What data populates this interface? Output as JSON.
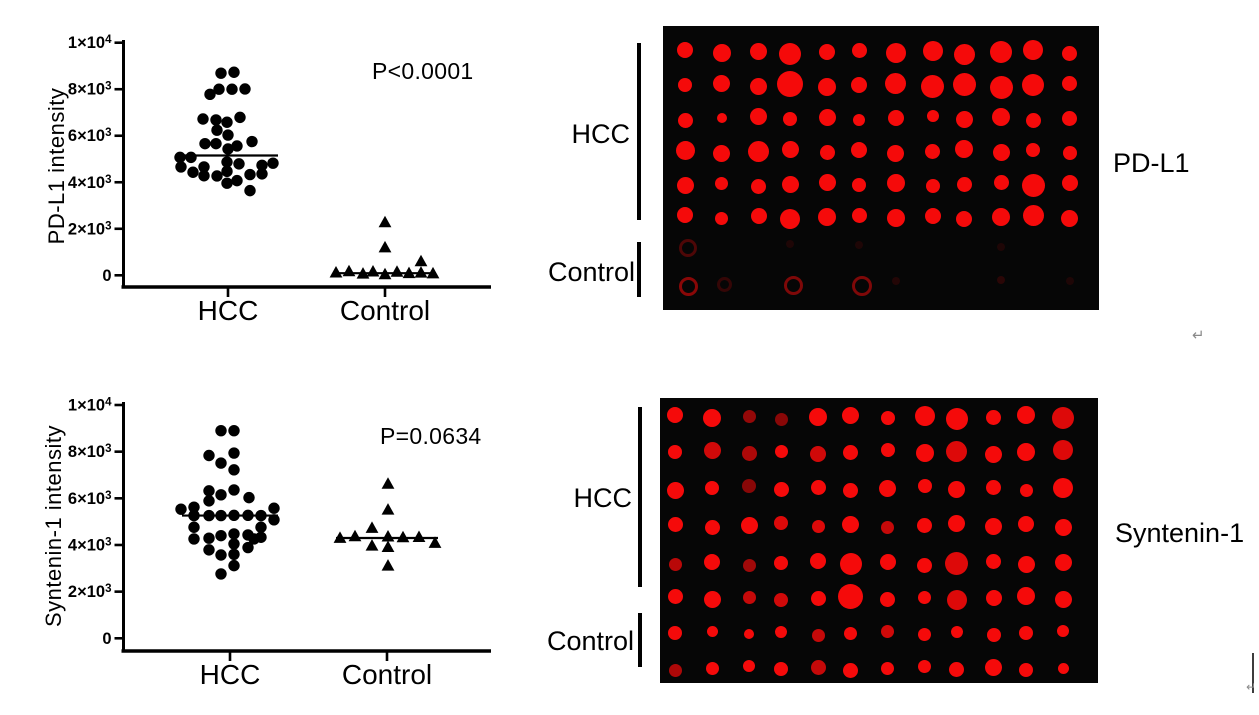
{
  "colors": {
    "ink": "#000000",
    "dot_red": "#f50a0a",
    "blot_bg": "#060606",
    "artifact_gray": "#8a8a8a"
  },
  "chart_data": [
    {
      "type": "scatter",
      "panel": "top-left",
      "title": "",
      "xlabel": "",
      "ylabel": "PD-L1 intensity",
      "annotation": "P<0.0001",
      "categories": [
        "HCC",
        "Control"
      ],
      "ylim": [
        0,
        10000
      ],
      "ytick_values": [
        0,
        2000,
        4000,
        6000,
        8000,
        10000
      ],
      "ytick_labels": [
        "0",
        "2×10^3",
        "4×10^3",
        "6×10^3",
        "8×10^3",
        "1×10^4"
      ],
      "legend": "none",
      "grid": false,
      "series": [
        {
          "name": "HCC",
          "marker": "circle",
          "median": 5150,
          "median_halfwidth": 50,
          "dx": [
            -7,
            6,
            -9,
            4,
            17,
            -18,
            -25,
            -12,
            12,
            -1,
            -11,
            0,
            -23,
            -12,
            0,
            9,
            24,
            -48,
            -37,
            -47,
            -35,
            -24,
            -24,
            -11,
            -1,
            -1,
            11,
            -1,
            9,
            22,
            22,
            34,
            34,
            45
          ],
          "values": [
            8690,
            8730,
            8000,
            8000,
            8010,
            7780,
            6720,
            6680,
            6790,
            6580,
            6240,
            6030,
            5660,
            5660,
            5430,
            5560,
            5750,
            5070,
            5070,
            4660,
            4430,
            4660,
            4280,
            4270,
            4870,
            4470,
            4790,
            3960,
            4070,
            4330,
            3640,
            4730,
            4360,
            4820
          ]
        },
        {
          "name": "Control",
          "marker": "triangle",
          "median": 90,
          "median_halfwidth": 51,
          "dx": [
            0,
            0,
            36,
            -49,
            -36,
            -22,
            -12,
            0,
            12,
            24,
            36,
            48
          ],
          "values": [
            2270,
            1190,
            590,
            110,
            160,
            60,
            150,
            30,
            140,
            80,
            100,
            70
          ]
        }
      ]
    },
    {
      "type": "scatter",
      "panel": "bottom-left",
      "title": "",
      "xlabel": "",
      "ylabel": "Syntenin-1 intensity",
      "annotation": "P=0.0634",
      "categories": [
        "HCC",
        "Control"
      ],
      "ylim": [
        0,
        10000
      ],
      "ytick_values": [
        0,
        2000,
        4000,
        6000,
        8000,
        10000
      ],
      "ytick_labels": [
        "0",
        "2×10^3",
        "4×10^3",
        "6×10^3",
        "8×10^3",
        "1×10^4"
      ],
      "legend": "none",
      "grid": false,
      "series": [
        {
          "name": "HCC",
          "marker": "circle",
          "median": 5260,
          "median_halfwidth": 48,
          "dx": [
            -9,
            4,
            4,
            -21,
            -9,
            4,
            -21,
            4,
            -21,
            -9,
            19,
            -49,
            -36,
            44,
            -36,
            -21,
            -9,
            4,
            18,
            31,
            44,
            -36,
            31,
            31,
            -36,
            -21,
            -9,
            4,
            18,
            24,
            4,
            -21,
            -9,
            4,
            18,
            4,
            -9
          ],
          "values": [
            8900,
            8900,
            7940,
            7835,
            7510,
            7220,
            6320,
            6360,
            5890,
            6150,
            6030,
            5535,
            5620,
            5575,
            5260,
            5260,
            5260,
            5270,
            5270,
            5260,
            5080,
            4760,
            4760,
            4330,
            4260,
            4290,
            4400,
            4475,
            4430,
            4260,
            4045,
            3790,
            3570,
            3600,
            3890,
            3115,
            2760
          ]
        },
        {
          "name": "Control",
          "marker": "triangle",
          "median": 4300,
          "median_halfwidth": 51,
          "dx": [
            1,
            1,
            -15,
            -47,
            -32,
            1,
            16,
            32,
            48,
            -15,
            1,
            1
          ],
          "values": [
            6610,
            5500,
            4720,
            4290,
            4360,
            4350,
            4320,
            4330,
            4075,
            3960,
            3900,
            3100
          ]
        }
      ]
    }
  ],
  "blots": [
    {
      "label": "PD-L1",
      "groups": [
        {
          "label": "HCC"
        },
        {
          "label": "Control"
        }
      ],
      "dots": [
        [
          [
            16,
            1
          ],
          [
            18,
            1
          ],
          [
            17,
            1
          ],
          [
            22,
            1
          ],
          [
            16,
            1
          ],
          [
            15,
            1
          ],
          [
            20,
            1
          ],
          [
            20,
            1
          ],
          [
            21,
            1
          ],
          [
            22,
            1
          ],
          [
            20,
            1
          ],
          [
            15,
            1
          ]
        ],
        [
          [
            14,
            1
          ],
          [
            17,
            1
          ],
          [
            17,
            1
          ],
          [
            26,
            1
          ],
          [
            18,
            1
          ],
          [
            16,
            1
          ],
          [
            21,
            1
          ],
          [
            23,
            1
          ],
          [
            23,
            1
          ],
          [
            23,
            1
          ],
          [
            22,
            1
          ],
          [
            15,
            1
          ]
        ],
        [
          [
            15,
            1
          ],
          [
            10,
            1
          ],
          [
            17,
            1
          ],
          [
            14,
            1
          ],
          [
            17,
            1
          ],
          [
            12,
            1
          ],
          [
            16,
            1
          ],
          [
            12,
            1
          ],
          [
            17,
            1
          ],
          [
            18,
            1
          ],
          [
            15,
            1
          ],
          [
            15,
            1
          ]
        ],
        [
          [
            19,
            1
          ],
          [
            17,
            1
          ],
          [
            21,
            1
          ],
          [
            17,
            1
          ],
          [
            15,
            1
          ],
          [
            16,
            1
          ],
          [
            17,
            1
          ],
          [
            15,
            1
          ],
          [
            18,
            1
          ],
          [
            17,
            1
          ],
          [
            14,
            1
          ],
          [
            14,
            1
          ]
        ],
        [
          [
            17,
            1
          ],
          [
            13,
            1
          ],
          [
            15,
            1
          ],
          [
            17,
            1
          ],
          [
            17,
            1
          ],
          [
            14,
            1
          ],
          [
            18,
            1
          ],
          [
            14,
            1
          ],
          [
            15,
            1
          ],
          [
            15,
            1
          ],
          [
            23,
            1
          ],
          [
            16,
            1
          ]
        ],
        [
          [
            16,
            1
          ],
          [
            13,
            1
          ],
          [
            16,
            1
          ],
          [
            20,
            1
          ],
          [
            18,
            1
          ],
          [
            15,
            1
          ],
          [
            18,
            1
          ],
          [
            16,
            1
          ],
          [
            16,
            1
          ],
          [
            18,
            1
          ],
          [
            21,
            1
          ],
          [
            17,
            1
          ]
        ],
        [
          [
            12,
            0.3,
            1
          ],
          [
            0,
            0
          ],
          [
            0,
            0
          ],
          [
            8,
            0.1
          ],
          [
            0,
            0
          ],
          [
            8,
            0.1
          ],
          [
            0,
            0
          ],
          [
            0,
            0
          ],
          [
            0,
            0
          ],
          [
            8,
            0.1
          ],
          [
            0,
            0
          ],
          [
            0,
            0
          ]
        ],
        [
          [
            13,
            0.55,
            1
          ],
          [
            9,
            0.2,
            1
          ],
          [
            0,
            0
          ],
          [
            13,
            0.5,
            1
          ],
          [
            0,
            0
          ],
          [
            14,
            0.5,
            1
          ],
          [
            8,
            0.12
          ],
          [
            0,
            0
          ],
          [
            0,
            0
          ],
          [
            8,
            0.15
          ],
          [
            0,
            0
          ],
          [
            8,
            0.1
          ]
        ]
      ]
    },
    {
      "label": "Syntenin-1",
      "groups": [
        {
          "label": "HCC"
        },
        {
          "label": "Control"
        }
      ],
      "dots": [
        [
          [
            16,
            1
          ],
          [
            18,
            1
          ],
          [
            13,
            0.6
          ],
          [
            13,
            0.55
          ],
          [
            18,
            1
          ],
          [
            17,
            1
          ],
          [
            14,
            1
          ],
          [
            20,
            1
          ],
          [
            22,
            1
          ],
          [
            15,
            1
          ],
          [
            18,
            1
          ],
          [
            22,
            0.9
          ]
        ],
        [
          [
            14,
            1
          ],
          [
            17,
            0.85
          ],
          [
            15,
            0.7
          ],
          [
            13,
            1
          ],
          [
            16,
            0.85
          ],
          [
            15,
            1
          ],
          [
            14,
            1
          ],
          [
            18,
            1
          ],
          [
            21,
            0.9
          ],
          [
            17,
            1
          ],
          [
            18,
            1
          ],
          [
            20,
            0.9
          ]
        ],
        [
          [
            17,
            1
          ],
          [
            14,
            1
          ],
          [
            14,
            0.55
          ],
          [
            15,
            1
          ],
          [
            15,
            1
          ],
          [
            15,
            1
          ],
          [
            17,
            1
          ],
          [
            14,
            1
          ],
          [
            17,
            1
          ],
          [
            15,
            1
          ],
          [
            13,
            1
          ],
          [
            20,
            1
          ]
        ],
        [
          [
            15,
            1
          ],
          [
            15,
            1
          ],
          [
            17,
            1
          ],
          [
            14,
            0.9
          ],
          [
            13,
            0.9
          ],
          [
            17,
            1
          ],
          [
            13,
            0.8
          ],
          [
            15,
            1
          ],
          [
            17,
            1
          ],
          [
            17,
            1
          ],
          [
            16,
            1
          ],
          [
            17,
            1
          ]
        ],
        [
          [
            13,
            0.75
          ],
          [
            16,
            1
          ],
          [
            13,
            0.65
          ],
          [
            14,
            1
          ],
          [
            16,
            1
          ],
          [
            22,
            1
          ],
          [
            16,
            1
          ],
          [
            15,
            1
          ],
          [
            23,
            0.9
          ],
          [
            15,
            1
          ],
          [
            17,
            1
          ],
          [
            17,
            1
          ]
        ],
        [
          [
            15,
            1
          ],
          [
            17,
            1
          ],
          [
            13,
            0.8
          ],
          [
            14,
            0.85
          ],
          [
            15,
            1
          ],
          [
            25,
            1
          ],
          [
            15,
            1
          ],
          [
            13,
            1
          ],
          [
            20,
            0.9
          ],
          [
            16,
            1
          ],
          [
            18,
            1
          ],
          [
            17,
            1
          ]
        ],
        [
          [
            14,
            1
          ],
          [
            11,
            1
          ],
          [
            10,
            1
          ],
          [
            12,
            1
          ],
          [
            13,
            0.8
          ],
          [
            13,
            1
          ],
          [
            13,
            0.85
          ],
          [
            13,
            1
          ],
          [
            12,
            1
          ],
          [
            14,
            1
          ],
          [
            14,
            1
          ],
          [
            12,
            1
          ]
        ],
        [
          [
            13,
            0.7
          ],
          [
            13,
            1
          ],
          [
            12,
            1
          ],
          [
            14,
            1
          ],
          [
            15,
            0.8
          ],
          [
            15,
            1
          ],
          [
            13,
            1
          ],
          [
            13,
            1
          ],
          [
            15,
            1
          ],
          [
            17,
            1
          ],
          [
            14,
            1
          ],
          [
            11,
            1
          ]
        ]
      ]
    }
  ],
  "artifacts": {
    "return_mark": "↵",
    "corner_mark": "↵"
  }
}
